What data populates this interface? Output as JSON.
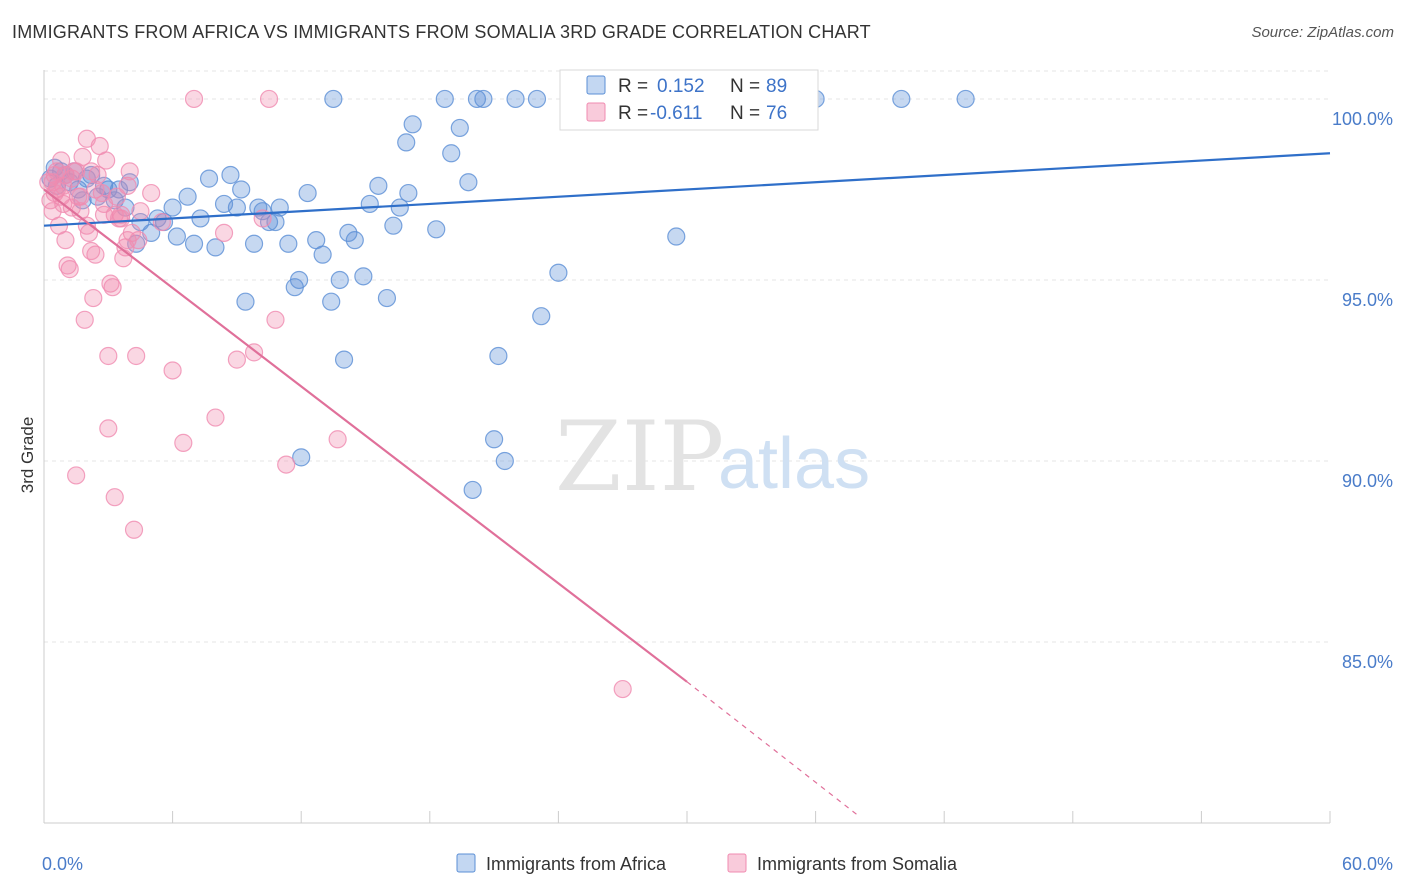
{
  "title": "IMMIGRANTS FROM AFRICA VS IMMIGRANTS FROM SOMALIA 3RD GRADE CORRELATION CHART",
  "source": "Source: ZipAtlas.com",
  "watermark": {
    "zip": "ZIP",
    "atlas": "atlas"
  },
  "colors": {
    "africa": "#5b8fd6",
    "africa_line": "#2f6fc9",
    "somalia": "#f08bb0",
    "somalia_line": "#e0709a",
    "grid": "#e6e6e6"
  },
  "chart_data": {
    "type": "scatter",
    "title": "IMMIGRANTS FROM AFRICA VS IMMIGRANTS FROM SOMALIA 3RD GRADE CORRELATION CHART",
    "xlabel": "",
    "ylabel": "3rd Grade",
    "xlim": [
      0,
      60
    ],
    "ylim": [
      80.0,
      100.8
    ],
    "x_ticks": [
      0,
      6,
      12,
      18,
      24,
      30,
      36,
      42,
      48,
      54,
      60
    ],
    "x_tick_labels": {
      "0": "0.0%",
      "60": "60.0%"
    },
    "y_ticks": [
      85,
      90,
      95,
      100
    ],
    "y_tick_labels": [
      "85.0%",
      "90.0%",
      "95.0%",
      "100.0%"
    ],
    "grid": true,
    "legend": {
      "placement": "top-center",
      "entries": [
        {
          "r_label": "R =",
          "r_value": "0.152",
          "n_label": "N =",
          "n_value": "89"
        },
        {
          "r_label": "R =",
          "r_value": "-0.611",
          "n_label": "N =",
          "n_value": "76"
        }
      ]
    },
    "series": [
      {
        "name": "Immigrants from Africa",
        "trend": {
          "x": [
            0,
            60
          ],
          "y": [
            96.5,
            98.5
          ]
        },
        "points": [
          [
            0.3,
            97.8
          ],
          [
            0.5,
            98.1
          ],
          [
            0.6,
            97.6
          ],
          [
            0.8,
            98.0
          ],
          [
            1.0,
            97.9
          ],
          [
            1.2,
            97.7
          ],
          [
            1.4,
            98.0
          ],
          [
            1.6,
            97.5
          ],
          [
            1.8,
            97.2
          ],
          [
            2.0,
            97.8
          ],
          [
            2.2,
            97.9
          ],
          [
            2.5,
            97.3
          ],
          [
            2.8,
            97.6
          ],
          [
            3.0,
            97.5
          ],
          [
            3.3,
            97.2
          ],
          [
            3.5,
            97.5
          ],
          [
            3.8,
            97.0
          ],
          [
            4.0,
            97.7
          ],
          [
            4.3,
            96.0
          ],
          [
            4.5,
            96.6
          ],
          [
            5.0,
            96.3
          ],
          [
            5.3,
            96.7
          ],
          [
            5.6,
            96.6
          ],
          [
            6.0,
            97.0
          ],
          [
            6.2,
            96.2
          ],
          [
            6.7,
            97.3
          ],
          [
            7.0,
            96.0
          ],
          [
            7.3,
            96.7
          ],
          [
            7.7,
            97.8
          ],
          [
            8.0,
            95.9
          ],
          [
            8.4,
            97.1
          ],
          [
            8.7,
            97.9
          ],
          [
            9.0,
            97.0
          ],
          [
            9.2,
            97.5
          ],
          [
            9.4,
            94.4
          ],
          [
            9.8,
            96.0
          ],
          [
            10.0,
            97.0
          ],
          [
            10.2,
            96.9
          ],
          [
            10.5,
            96.6
          ],
          [
            10.8,
            96.6
          ],
          [
            11.0,
            97.0
          ],
          [
            11.4,
            96.0
          ],
          [
            11.7,
            94.8
          ],
          [
            11.9,
            95.0
          ],
          [
            12.3,
            97.4
          ],
          [
            12.7,
            96.1
          ],
          [
            13.0,
            95.7
          ],
          [
            13.4,
            94.4
          ],
          [
            13.8,
            95.0
          ],
          [
            14.2,
            96.3
          ],
          [
            14.5,
            96.1
          ],
          [
            14.9,
            95.1
          ],
          [
            15.2,
            97.1
          ],
          [
            15.6,
            97.6
          ],
          [
            16.0,
            94.5
          ],
          [
            16.3,
            96.5
          ],
          [
            16.6,
            97.0
          ],
          [
            17.0,
            97.4
          ],
          [
            17.2,
            99.3
          ],
          [
            16.9,
            98.8
          ],
          [
            18.3,
            96.4
          ],
          [
            18.7,
            100.0
          ],
          [
            19.0,
            98.5
          ],
          [
            19.4,
            99.2
          ],
          [
            19.8,
            97.7
          ],
          [
            20.2,
            100.0
          ],
          [
            20.5,
            100.0
          ],
          [
            21.2,
            92.9
          ],
          [
            22.0,
            100.0
          ],
          [
            23.0,
            100.0
          ],
          [
            23.2,
            94.0
          ],
          [
            24.0,
            95.2
          ],
          [
            24.5,
            100.0
          ],
          [
            25.0,
            100.0
          ],
          [
            26.0,
            100.0
          ],
          [
            27.0,
            100.0
          ],
          [
            28.0,
            100.0
          ],
          [
            29.0,
            100.0
          ],
          [
            30.0,
            100.0
          ],
          [
            29.5,
            96.2
          ],
          [
            13.5,
            100.0
          ],
          [
            12.0,
            90.1
          ],
          [
            21.5,
            90.0
          ],
          [
            20.0,
            89.2
          ],
          [
            21.0,
            90.6
          ],
          [
            14.0,
            92.8
          ],
          [
            43.0,
            100.0
          ],
          [
            36.0,
            100.0
          ],
          [
            40.0,
            100.0
          ]
        ]
      },
      {
        "name": "Immigrants from Somalia",
        "trend": {
          "x": [
            0,
            30
          ],
          "y": [
            97.5,
            83.9
          ],
          "dash": {
            "x": [
              30,
              38
            ],
            "y": [
              83.9,
              80.2
            ]
          }
        },
        "points": [
          [
            0.2,
            97.7
          ],
          [
            0.3,
            97.2
          ],
          [
            0.4,
            96.9
          ],
          [
            0.5,
            97.4
          ],
          [
            0.6,
            98.0
          ],
          [
            0.7,
            96.5
          ],
          [
            0.8,
            98.3
          ],
          [
            0.9,
            97.6
          ],
          [
            1.0,
            96.1
          ],
          [
            1.1,
            95.4
          ],
          [
            1.2,
            95.3
          ],
          [
            1.3,
            97.8
          ],
          [
            1.4,
            98.0
          ],
          [
            1.5,
            89.6
          ],
          [
            1.6,
            97.3
          ],
          [
            1.7,
            96.9
          ],
          [
            1.8,
            98.4
          ],
          [
            1.9,
            93.9
          ],
          [
            2.0,
            98.9
          ],
          [
            2.1,
            96.3
          ],
          [
            2.2,
            95.8
          ],
          [
            2.3,
            94.5
          ],
          [
            2.4,
            95.7
          ],
          [
            2.5,
            97.9
          ],
          [
            2.6,
            98.7
          ],
          [
            2.7,
            97.4
          ],
          [
            2.8,
            96.8
          ],
          [
            2.9,
            98.3
          ],
          [
            3.0,
            92.9
          ],
          [
            3.1,
            94.9
          ],
          [
            3.2,
            94.8
          ],
          [
            3.3,
            89.0
          ],
          [
            3.4,
            97.3
          ],
          [
            3.5,
            96.7
          ],
          [
            3.6,
            96.7
          ],
          [
            3.7,
            95.6
          ],
          [
            3.8,
            95.9
          ],
          [
            3.9,
            97.6
          ],
          [
            4.0,
            98.0
          ],
          [
            4.1,
            96.3
          ],
          [
            4.2,
            88.1
          ],
          [
            4.3,
            92.9
          ],
          [
            4.4,
            96.1
          ],
          [
            4.5,
            96.9
          ],
          [
            5.0,
            97.4
          ],
          [
            5.5,
            96.6
          ],
          [
            6.0,
            92.5
          ],
          [
            6.5,
            90.5
          ],
          [
            7.0,
            100.0
          ],
          [
            8.0,
            91.2
          ],
          [
            8.4,
            96.3
          ],
          [
            9.0,
            92.8
          ],
          [
            9.8,
            93.0
          ],
          [
            10.2,
            96.7
          ],
          [
            10.5,
            100.0
          ],
          [
            10.8,
            93.9
          ],
          [
            11.3,
            89.9
          ],
          [
            13.7,
            90.6
          ],
          [
            3.0,
            90.9
          ],
          [
            27.0,
            83.7
          ],
          [
            0.5,
            97.9
          ],
          [
            0.9,
            97.1
          ],
          [
            1.3,
            97.0
          ],
          [
            1.7,
            97.3
          ],
          [
            2.4,
            97.5
          ],
          [
            3.3,
            96.8
          ],
          [
            2.0,
            96.5
          ],
          [
            1.0,
            97.9
          ],
          [
            0.4,
            97.7
          ],
          [
            0.6,
            97.5
          ],
          [
            2.8,
            97.1
          ],
          [
            3.6,
            96.8
          ],
          [
            1.5,
            98.0
          ],
          [
            0.8,
            97.3
          ],
          [
            2.2,
            98.0
          ],
          [
            3.9,
            96.1
          ]
        ]
      }
    ]
  }
}
